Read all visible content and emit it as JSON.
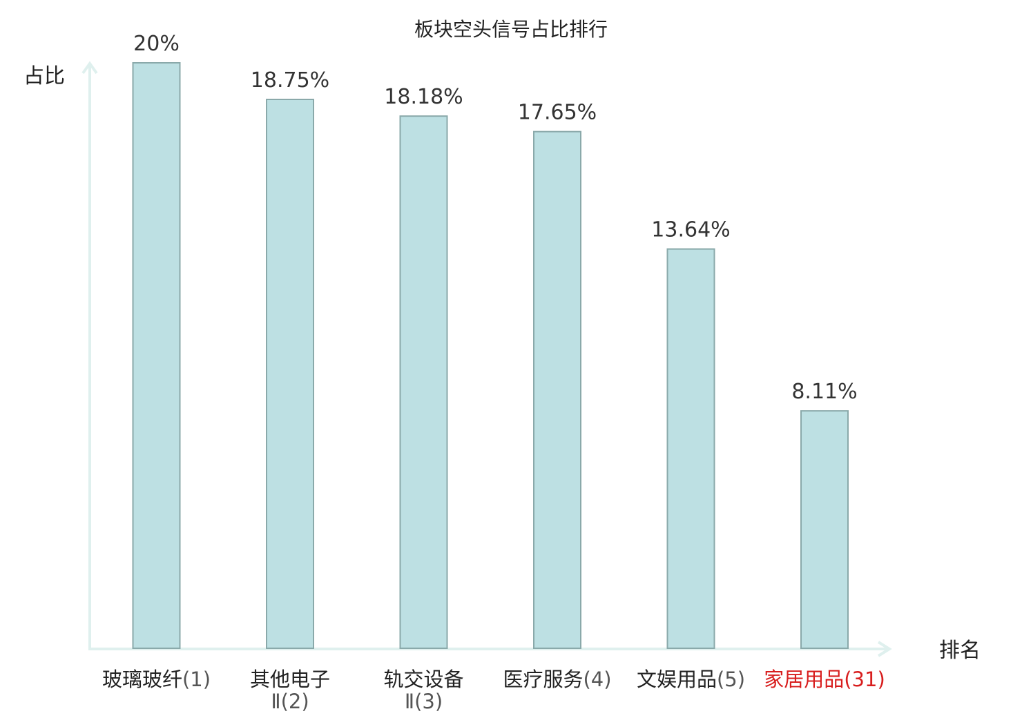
{
  "chart_data": {
    "type": "bar",
    "title": "板块空头信号占比排行",
    "xlabel": "排名",
    "ylabel": "占比",
    "ylim": [
      0,
      20
    ],
    "grid": false,
    "categories": [
      {
        "name": "玻璃玻纤",
        "rank": "(1)",
        "value": 20,
        "value_label": "20%",
        "highlight": false
      },
      {
        "name": "其他电子",
        "name_line2": "Ⅱ",
        "rank": "(2)",
        "value": 18.75,
        "value_label": "18.75%",
        "highlight": false
      },
      {
        "name": "轨交设备",
        "name_line2": "Ⅱ",
        "rank": "(3)",
        "value": 18.18,
        "value_label": "18.18%",
        "highlight": false
      },
      {
        "name": "医疗服务",
        "rank": "(4)",
        "value": 17.65,
        "value_label": "17.65%",
        "highlight": false
      },
      {
        "name": "文娱用品",
        "rank": "(5)",
        "value": 13.64,
        "value_label": "13.64%",
        "highlight": false
      },
      {
        "name": "家居用品",
        "rank": "(31)",
        "value": 8.11,
        "value_label": "8.11%",
        "highlight": true
      }
    ],
    "colors": {
      "bar_fill": "#bde0e3",
      "bar_stroke": "#8aa9aa",
      "axis": "#dff0ee",
      "highlight": "#d81e1e"
    }
  }
}
